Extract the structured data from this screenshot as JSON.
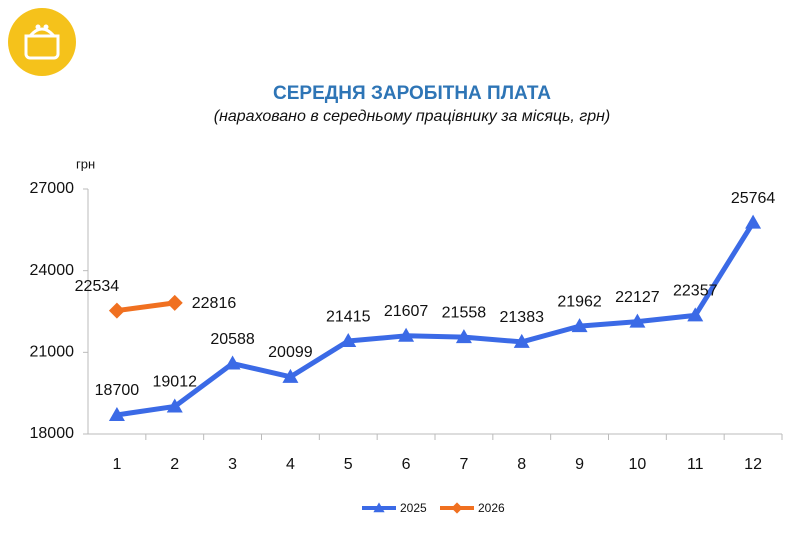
{
  "chart_data": {
    "type": "line",
    "title": "СЕРЕДНЯ ЗАРОБІТНА ПЛАТА",
    "subtitle": "(нараховано в середньому працівнику за місяць, грн)",
    "y_label": "грн",
    "categories": [
      "1",
      "2",
      "3",
      "4",
      "5",
      "6",
      "7",
      "8",
      "9",
      "10",
      "11",
      "12"
    ],
    "series": [
      {
        "name": "2025",
        "color": "#3b6ae6",
        "marker": "triangle",
        "values": [
          18700,
          19012,
          20588,
          20099,
          21415,
          21607,
          21558,
          21383,
          21962,
          22127,
          22357,
          25764
        ]
      },
      {
        "name": "2026",
        "color": "#f07020",
        "marker": "diamond",
        "values": [
          22534,
          22816,
          null,
          null,
          null,
          null,
          null,
          null,
          null,
          null,
          null,
          null
        ]
      }
    ],
    "ylim": [
      18000,
      27000
    ],
    "yticks": [
      18000,
      21000,
      24000,
      27000
    ],
    "grid": false,
    "legend": "bottom"
  }
}
